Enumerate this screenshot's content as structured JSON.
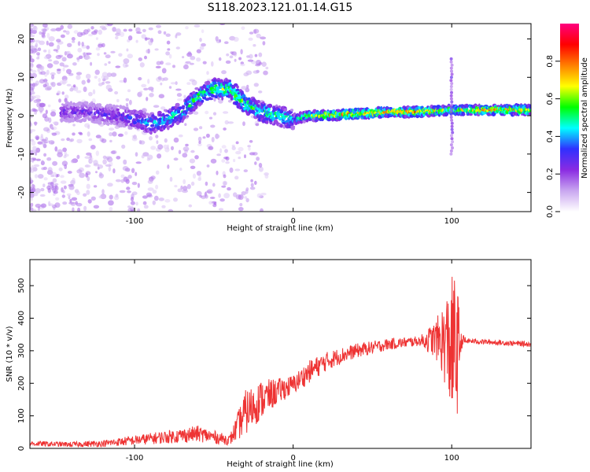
{
  "chart_data": [
    {
      "type": "heatmap",
      "title": "S118.2023.121.01.14.G15",
      "xlabel": "Height of straight line (km)",
      "ylabel": "Frequency (Hz)",
      "xlim": [
        -166,
        150
      ],
      "ylim": [
        -25,
        24
      ],
      "xticks": [
        -100,
        0,
        100
      ],
      "yticks": [
        -20,
        -10,
        0,
        10,
        20
      ],
      "colorbar": {
        "label": "Normalized spectral amplitude",
        "range": [
          0,
          1
        ],
        "ticks": [
          0.0,
          0.2,
          0.4,
          0.6,
          0.8
        ],
        "colormap": [
          "#ffffff",
          "#c9a6f0",
          "#8a2be2",
          "#3030ff",
          "#00ffff",
          "#00ff00",
          "#ffff00",
          "#ff7f00",
          "#ff0000",
          "#ff007f"
        ]
      },
      "ridge": {
        "description_points_x": [
          -130,
          -110,
          -90,
          -80,
          -70,
          -60,
          -50,
          -40,
          -30,
          -20,
          -10,
          0,
          10,
          20,
          40,
          60,
          80,
          100,
          120,
          150
        ],
        "frequency": [
          1,
          0,
          -2,
          -1,
          1,
          5,
          7,
          7,
          3,
          1,
          0,
          -1,
          0,
          0,
          0.5,
          1,
          1,
          1.5,
          1.5,
          1.5
        ],
        "peak_amplitude": [
          0.3,
          0.35,
          0.5,
          0.55,
          0.6,
          0.65,
          0.7,
          0.7,
          0.65,
          0.65,
          0.6,
          0.55,
          0.7,
          0.85,
          0.9,
          0.85,
          0.9,
          0.75,
          0.85,
          0.85
        ]
      },
      "spike": {
        "x": 100,
        "frequency_range": [
          -10,
          15
        ]
      }
    },
    {
      "type": "line",
      "xlabel": "Height of straight line (km)",
      "ylabel": "SNR (10 * v/v)",
      "xlim": [
        -166,
        150
      ],
      "ylim": [
        0,
        580
      ],
      "xticks": [
        -100,
        0,
        100
      ],
      "yticks": [
        0,
        100,
        200,
        300,
        400,
        500
      ],
      "color": "#ee3333",
      "trend_x": [
        -166,
        -140,
        -120,
        -100,
        -80,
        -60,
        -50,
        -40,
        -30,
        -20,
        -10,
        0,
        10,
        20,
        30,
        40,
        50,
        60,
        70,
        80,
        90,
        95,
        100,
        103,
        106,
        110,
        130,
        150
      ],
      "trend_y": [
        15,
        12,
        15,
        25,
        35,
        45,
        35,
        25,
        110,
        150,
        175,
        195,
        235,
        265,
        285,
        300,
        310,
        320,
        325,
        330,
        335,
        330,
        310,
        300,
        330,
        330,
        325,
        320
      ],
      "noise_amplitude": [
        8,
        8,
        10,
        15,
        20,
        25,
        20,
        15,
        70,
        60,
        40,
        30,
        35,
        30,
        25,
        22,
        20,
        18,
        16,
        15,
        60,
        120,
        220,
        240,
        25,
        8,
        8,
        8
      ]
    }
  ]
}
